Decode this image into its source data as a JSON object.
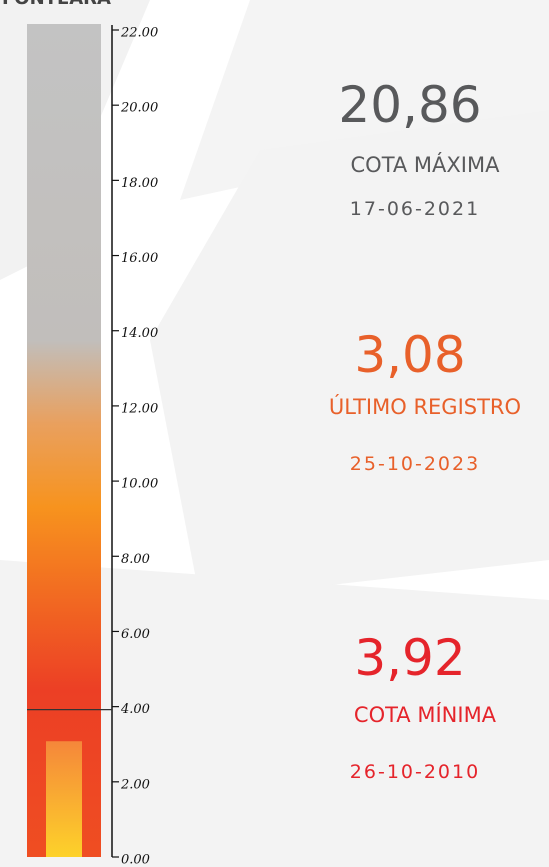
{
  "chart_data": {
    "type": "gauge",
    "title": "FONTEARA",
    "ylim": [
      0,
      22
    ],
    "yticks": [
      {
        "value": 0,
        "label": "0.00"
      },
      {
        "value": 2,
        "label": "2.00"
      },
      {
        "value": 4,
        "label": "4.00"
      },
      {
        "value": 6,
        "label": "6.00"
      },
      {
        "value": 8,
        "label": "8.00"
      },
      {
        "value": 10,
        "label": "10.00"
      },
      {
        "value": 12,
        "label": "12.00"
      },
      {
        "value": 14,
        "label": "14.00"
      },
      {
        "value": 16,
        "label": "16.00"
      },
      {
        "value": 18,
        "label": "18.00"
      },
      {
        "value": 20,
        "label": "20.00"
      },
      {
        "value": 22,
        "label": "22.00"
      }
    ],
    "categories": [
      "COTA MÁXIMA",
      "ÚLTIMO REGISTRO",
      "COTA MÍNIMA"
    ],
    "values": [
      20.86,
      3.08,
      3.92
    ],
    "value_labels": [
      "20,86",
      "3,08",
      "3,92"
    ],
    "dates": [
      "17-06-2021",
      "25-10-2023",
      "26-10-2010"
    ],
    "colors": [
      "#58595b",
      "#e8602a",
      "#e5242b"
    ]
  }
}
